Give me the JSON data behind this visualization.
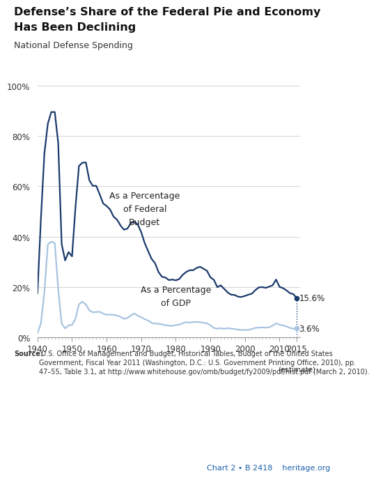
{
  "title_line1": "Defense’s Share of the Federal Pie and Economy",
  "title_line2": "Has Been Declining",
  "subtitle": "National Defense Spending",
  "bg_color": "#FFFFFF",
  "line1_color": "#1a3a6b",
  "line2_color": "#a8c4e0",
  "annotation_budget": "As a Percentage\nof Federal\nBudget",
  "annotation_gdp": "As a Percentage\nof GDP",
  "label1": "15.6%",
  "label2": "3.6%",
  "source_bold": "Source:",
  "source_rest": " U.S. Office of Management and Budget, Historical Tables, Budget of the United States\nGovernment, Fiscal Year 2011 (Washington, D.C.: U.S. Government Printing Office, 2010), pp.\n47–55, Table 3.1, at http://www.whitehouse.gov/omb/budget/fy2009/pdf/hist.pdf (March 2, 2010).",
  "chart_label": "Chart 2 • B 2418    heritage.org",
  "years": [
    1940,
    1941,
    1942,
    1943,
    1944,
    1945,
    1946,
    1947,
    1948,
    1949,
    1950,
    1951,
    1952,
    1953,
    1954,
    1955,
    1956,
    1957,
    1958,
    1959,
    1960,
    1961,
    1962,
    1963,
    1964,
    1965,
    1966,
    1967,
    1968,
    1969,
    1970,
    1971,
    1972,
    1973,
    1974,
    1975,
    1976,
    1977,
    1978,
    1979,
    1980,
    1981,
    1982,
    1983,
    1984,
    1985,
    1986,
    1987,
    1988,
    1989,
    1990,
    1991,
    1992,
    1993,
    1994,
    1995,
    1996,
    1997,
    1998,
    1999,
    2000,
    2001,
    2002,
    2003,
    2004,
    2005,
    2006,
    2007,
    2008,
    2009,
    2010,
    2011,
    2012,
    2013,
    2014,
    2015
  ],
  "pct_budget": [
    17.5,
    47.1,
    73.0,
    84.9,
    89.5,
    89.5,
    77.3,
    37.1,
    30.6,
    33.9,
    32.2,
    51.8,
    68.1,
    69.4,
    69.5,
    62.4,
    60.2,
    60.2,
    56.8,
    53.2,
    52.2,
    50.8,
    48.0,
    46.8,
    44.5,
    42.8,
    43.2,
    45.4,
    46.0,
    44.9,
    41.8,
    37.5,
    34.3,
    31.2,
    29.5,
    26.0,
    24.1,
    23.8,
    22.8,
    23.0,
    22.7,
    23.2,
    24.9,
    26.0,
    26.7,
    26.7,
    27.6,
    28.1,
    27.3,
    26.5,
    23.9,
    22.9,
    20.0,
    20.7,
    19.3,
    17.9,
    17.0,
    16.9,
    16.2,
    16.1,
    16.5,
    17.0,
    17.4,
    18.8,
    19.9,
    20.0,
    19.7,
    20.2,
    20.7,
    23.0,
    20.1,
    19.6,
    18.7,
    17.6,
    17.2,
    15.6
  ],
  "pct_gdp": [
    1.7,
    5.6,
    17.8,
    37.0,
    38.0,
    37.5,
    19.2,
    5.5,
    3.6,
    4.8,
    5.0,
    7.4,
    13.2,
    14.2,
    13.1,
    10.8,
    10.0,
    10.1,
    10.2,
    9.5,
    9.0,
    9.1,
    9.0,
    8.7,
    8.2,
    7.4,
    7.7,
    8.8,
    9.5,
    8.7,
    8.1,
    7.3,
    6.7,
    5.8,
    5.5,
    5.5,
    5.2,
    4.9,
    4.7,
    4.6,
    4.9,
    5.1,
    5.7,
    6.1,
    5.9,
    6.1,
    6.2,
    6.1,
    5.8,
    5.6,
    4.9,
    3.8,
    3.5,
    3.7,
    3.4,
    3.7,
    3.5,
    3.4,
    3.1,
    3.0,
    3.0,
    3.0,
    3.4,
    3.8,
    3.9,
    4.0,
    3.9,
    4.1,
    4.7,
    5.6,
    5.1,
    4.8,
    4.4,
    3.8,
    3.5,
    3.6
  ],
  "ylim": [
    0,
    100
  ],
  "xlim": [
    1940,
    2016
  ],
  "yticks": [
    0,
    20,
    40,
    60,
    80,
    100
  ],
  "xtick_major": [
    1940,
    1950,
    1960,
    1970,
    1980,
    1990,
    2000,
    2010,
    2015
  ],
  "xtick_labels": [
    "1940",
    "1950",
    "1960",
    "1970",
    "1980",
    "1990",
    "2000",
    "2010",
    "2015"
  ]
}
